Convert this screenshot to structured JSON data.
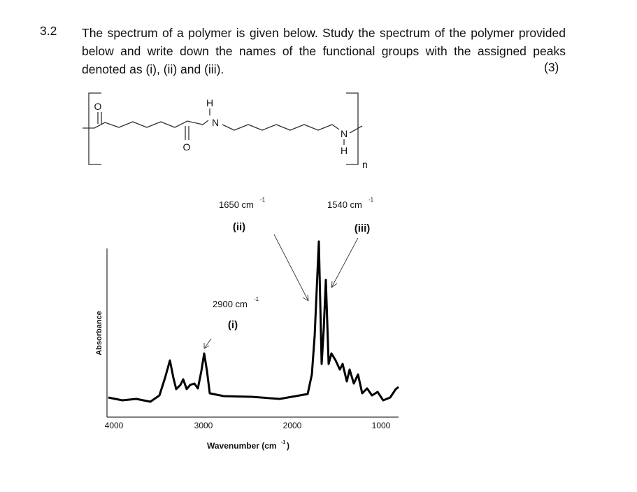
{
  "question": {
    "number": "3.2",
    "text": "The spectrum of a polymer is given below. Study the spectrum of the polymer provided below and write down the names of the functional groups with the assigned peaks denoted as (i), (ii) and (iii).",
    "marks": "(3)"
  },
  "structure": {
    "atoms": [
      "O",
      "H",
      "N",
      "O",
      "N",
      "H"
    ],
    "repeat": "n"
  },
  "spectrum": {
    "peaks": [
      {
        "wavenumber": "1650 cm",
        "exponent": "-1",
        "label": "(ii)"
      },
      {
        "wavenumber": "1540 cm",
        "exponent": "-1",
        "label": "(iii)"
      },
      {
        "wavenumber": "2900 cm",
        "exponent": "-1",
        "label": "(i)"
      }
    ],
    "x_axis": {
      "label": "Wavenumber (cm",
      "exponent": "-1",
      "close": ")",
      "ticks": [
        "4000",
        "3000",
        "2000",
        "1000"
      ]
    },
    "y_axis": {
      "label": "Absorbance"
    }
  }
}
